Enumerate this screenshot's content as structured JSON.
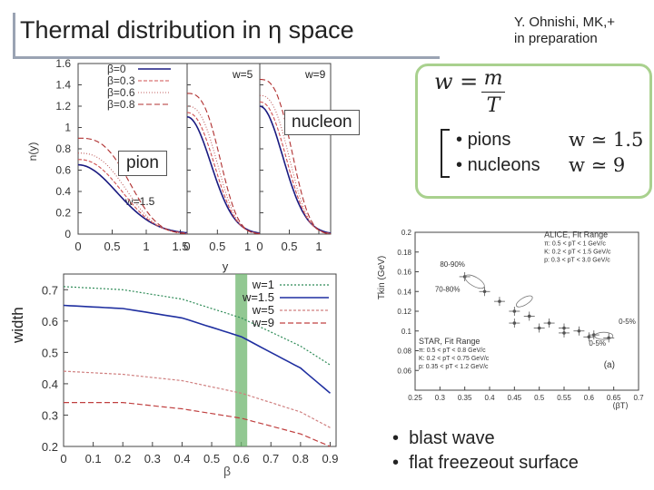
{
  "slide": {
    "title": "Thermal distribution in η space",
    "credit_line1": "Y. Ohnishi, MK,+",
    "credit_line2": "in preparation",
    "nucleon_label": "nucleon",
    "pion_label": "pion",
    "width_label": "width",
    "formula": {
      "lhs": "w =",
      "num": "m",
      "den": "T"
    },
    "bullets": [
      {
        "label": "pions",
        "approx": "w ≃ 1.5"
      },
      {
        "label": "nucleons",
        "approx": "w ≃ 9"
      }
    ],
    "bottom_bullets": [
      "blast wave",
      "flat freezeout surface"
    ],
    "colors": {
      "accent_green": "#a9d18e",
      "band_green": "#6db56d",
      "title_rule": "#9aa3b3"
    }
  },
  "chart_data": [
    {
      "type": "line",
      "panels": [
        "w=1.5",
        "w=5",
        "w=9"
      ],
      "ylabel": "n(y)",
      "xlabel": "y",
      "xlim": [
        0,
        1.3
      ],
      "ylim": [
        0,
        1.6
      ],
      "xticks": [
        "0",
        "0.5",
        "1",
        "1.5",
        "0",
        "0.5",
        "1",
        "0",
        "0.5",
        "1"
      ],
      "yticks": [
        "0",
        "0.2",
        "0.4",
        "0.6",
        "0.8",
        "1",
        "1.2",
        "1.4",
        "1.6"
      ],
      "series": [
        {
          "name": "β=0",
          "color": "#1a1a80"
        },
        {
          "name": "β=0.3",
          "color": "#d05050"
        },
        {
          "name": "β=0.6",
          "color": "#c06060"
        },
        {
          "name": "β=0.8",
          "color": "#b03030"
        }
      ],
      "width_parameter": [
        1.5,
        5,
        9
      ],
      "beta": [
        0,
        0.3,
        0.6,
        0.8
      ],
      "peak_values": {
        "w=1.5": [
          0.65,
          0.7,
          0.76,
          0.9
        ],
        "w=5": [
          1.1,
          1.14,
          1.2,
          1.32
        ],
        "w=9": [
          1.2,
          1.24,
          1.3,
          1.45
        ]
      },
      "legend_position": "top-left",
      "grid": false
    },
    {
      "type": "line",
      "xlabel": "β",
      "ylabel": "width",
      "xlim": [
        0,
        0.92
      ],
      "ylim": [
        0.2,
        0.75
      ],
      "xticks": [
        "0",
        "0.1",
        "0.2",
        "0.3",
        "0.4",
        "0.5",
        "0.6",
        "0.7",
        "0.8",
        "0.9"
      ],
      "yticks": [
        "0.2",
        "0.3",
        "0.4",
        "0.5",
        "0.6",
        "0.7"
      ],
      "series": [
        {
          "name": "w=1",
          "color": "#2e8b57",
          "x": [
            0,
            0.2,
            0.4,
            0.6,
            0.8,
            0.9
          ],
          "y": [
            0.71,
            0.7,
            0.67,
            0.61,
            0.52,
            0.46
          ]
        },
        {
          "name": "w=1.5",
          "color": "#1f2fa0",
          "x": [
            0,
            0.2,
            0.4,
            0.6,
            0.8,
            0.9
          ],
          "y": [
            0.65,
            0.64,
            0.61,
            0.55,
            0.45,
            0.37
          ]
        },
        {
          "name": "w=5",
          "color": "#d08080",
          "x": [
            0,
            0.2,
            0.4,
            0.6,
            0.8,
            0.9
          ],
          "y": [
            0.44,
            0.43,
            0.41,
            0.37,
            0.31,
            0.26
          ]
        },
        {
          "name": "w=9",
          "color": "#c04040",
          "x": [
            0,
            0.2,
            0.4,
            0.6,
            0.8,
            0.9
          ],
          "y": [
            0.34,
            0.34,
            0.32,
            0.29,
            0.24,
            0.2
          ]
        }
      ],
      "highlight_band_beta": [
        0.58,
        0.62
      ],
      "legend_position": "top-right",
      "grid": false
    },
    {
      "type": "scatter",
      "xlabel": "⟨βT⟩",
      "ylabel": "Tkin (GeV)",
      "xlim": [
        0.25,
        0.7
      ],
      "ylim": [
        0.04,
        0.2
      ],
      "xticks": [
        "0.25",
        "0.3",
        "0.35",
        "0.4",
        "0.45",
        "0.5",
        "0.55",
        "0.6",
        "0.65",
        "0.7"
      ],
      "yticks": [
        "0.06",
        "0.08",
        "0.1",
        "0.12",
        "0.14",
        "0.16",
        "0.18",
        "0.2"
      ],
      "annotations": [
        "80-90%",
        "70-80%",
        "0-5%",
        "0-5%",
        "(a)"
      ],
      "legend_alice": [
        "ALICE, Fit Range",
        "π: 0.5 < pT < 1 GeV/c",
        "K: 0.2 < pT < 1.5 GeV/c",
        "p: 0.3 < pT < 3.0 GeV/c"
      ],
      "legend_star": [
        "STAR, Fit Range",
        "π: 0.5 < pT < 0.8 GeV/c",
        "K: 0.2 < pT < 0.75 GeV/c",
        "p: 0.35 < pT < 1.2 GeV/c"
      ],
      "points": [
        {
          "x": 0.35,
          "y": 0.155
        },
        {
          "x": 0.39,
          "y": 0.14
        },
        {
          "x": 0.42,
          "y": 0.13
        },
        {
          "x": 0.45,
          "y": 0.12
        },
        {
          "x": 0.48,
          "y": 0.115
        },
        {
          "x": 0.52,
          "y": 0.108
        },
        {
          "x": 0.55,
          "y": 0.103
        },
        {
          "x": 0.58,
          "y": 0.1
        },
        {
          "x": 0.61,
          "y": 0.096
        },
        {
          "x": 0.64,
          "y": 0.093
        },
        {
          "x": 0.45,
          "y": 0.108
        },
        {
          "x": 0.5,
          "y": 0.103
        },
        {
          "x": 0.55,
          "y": 0.098
        },
        {
          "x": 0.6,
          "y": 0.094
        }
      ]
    }
  ]
}
